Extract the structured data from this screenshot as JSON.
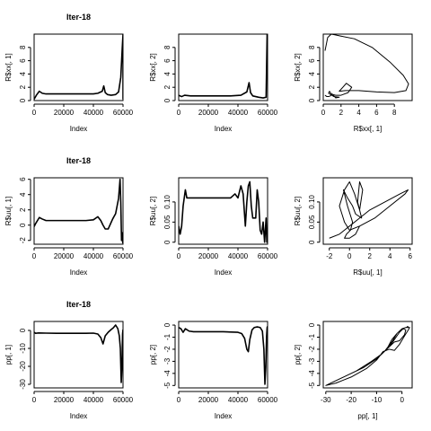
{
  "chart_data": [
    {
      "type": "line",
      "title": "Iter-18",
      "xlabel": "Index",
      "ylabel": "R$xx[, 1]",
      "xlim": [
        0,
        60000
      ],
      "ylim": [
        0,
        10
      ],
      "xticks": [
        0,
        20000,
        40000,
        60000
      ],
      "yticks": [
        0,
        2,
        4,
        6,
        8
      ],
      "series": [
        {
          "x": [
            0,
            1500,
            3500,
            5500,
            8000,
            15000,
            25000,
            35000,
            40000,
            43000,
            46000,
            47000,
            48000,
            49500,
            52000,
            55000,
            57000,
            58500,
            59500,
            60000,
            60000
          ],
          "y": [
            0.2,
            0.8,
            1.4,
            1.1,
            1.0,
            1.0,
            1.0,
            1.0,
            1.0,
            1.1,
            1.4,
            2.2,
            1.2,
            0.9,
            0.8,
            0.9,
            1.3,
            3.5,
            8.0,
            10.0,
            0.2
          ]
        }
      ]
    },
    {
      "type": "line",
      "title": "",
      "xlabel": "Index",
      "ylabel": "R$xx[, 2]",
      "xlim": [
        0,
        60000
      ],
      "ylim": [
        0,
        10
      ],
      "xticks": [
        0,
        20000,
        40000,
        60000
      ],
      "yticks": [
        0,
        2,
        4,
        6,
        8
      ],
      "series": [
        {
          "x": [
            0,
            2000,
            4000,
            8000,
            15000,
            25000,
            35000,
            42000,
            46000,
            47500,
            48500,
            50000,
            54000,
            57000,
            59000,
            59700,
            60000,
            60000
          ],
          "y": [
            0.8,
            0.6,
            0.8,
            0.7,
            0.7,
            0.7,
            0.7,
            0.8,
            1.3,
            2.7,
            1.2,
            0.7,
            0.5,
            0.4,
            0.5,
            10.0,
            9.5,
            7.5
          ]
        }
      ]
    },
    {
      "type": "line",
      "title": "",
      "xlabel": "R$xx[, 1]",
      "ylabel": "R$xx[, 2]",
      "xlim": [
        0,
        10
      ],
      "ylim": [
        0,
        10
      ],
      "xticks": [
        0,
        2,
        4,
        6,
        8
      ],
      "yticks": [
        0,
        2,
        4,
        6,
        8
      ],
      "series": [
        {
          "x": [
            0.2,
            0.5,
            0.9,
            1.3,
            2.0,
            3.5,
            5.5,
            7.5,
            9.0,
            9.6,
            9.3,
            8.0,
            6.0,
            4.0,
            2.5,
            1.8,
            2.6,
            3.2,
            2.8,
            2.0,
            1.4,
            1.1,
            0.9,
            0.7,
            0.6,
            1.2,
            1.8,
            1.4,
            1.0,
            0.8,
            0.6,
            0.4,
            0.2
          ],
          "y": [
            7.5,
            9.5,
            10.0,
            9.9,
            9.7,
            9.3,
            8.0,
            5.8,
            3.8,
            2.5,
            1.5,
            1.2,
            1.3,
            1.5,
            1.5,
            1.4,
            2.6,
            2.0,
            1.2,
            0.8,
            0.8,
            0.9,
            1.0,
            1.4,
            1.1,
            0.6,
            0.5,
            0.4,
            1.0,
            0.7,
            0.6,
            0.6,
            0.8
          ]
        }
      ]
    },
    {
      "type": "line",
      "title": "Iter-18",
      "xlabel": "Index",
      "ylabel": "R$uu[, 1]",
      "xlim": [
        0,
        60000
      ],
      "ylim": [
        -2.5,
        6.2
      ],
      "xticks": [
        0,
        20000,
        40000,
        60000
      ],
      "yticks": [
        -2,
        0,
        2,
        4,
        6
      ],
      "series": [
        {
          "x": [
            0,
            1000,
            3500,
            5500,
            8000,
            15000,
            25000,
            35000,
            40000,
            43000,
            45000,
            46500,
            48000,
            50000,
            53000,
            55000,
            57000,
            58000,
            58500,
            59000,
            59500,
            59800,
            60000
          ],
          "y": [
            -0.2,
            0.2,
            1.0,
            0.8,
            0.6,
            0.6,
            0.6,
            0.6,
            0.7,
            1.1,
            0.6,
            0.0,
            -0.5,
            -0.5,
            0.8,
            1.5,
            3.5,
            6.0,
            3.0,
            -2.0,
            -1.0,
            -2.3,
            -1.5
          ]
        }
      ]
    },
    {
      "type": "line",
      "title": "",
      "xlabel": "Index",
      "ylabel": "R$uu[, 2]",
      "xlim": [
        0,
        60000
      ],
      "ylim": [
        -0.005,
        0.16
      ],
      "xticks": [
        0,
        20000,
        40000,
        60000
      ],
      "yticks": [
        0.0,
        0.05,
        0.1
      ],
      "series": [
        {
          "x": [
            0,
            1000,
            2000,
            3000,
            4500,
            5500,
            7000,
            9000,
            12000,
            15000,
            25000,
            35000,
            38000,
            40000,
            42000,
            43500,
            45000,
            46000,
            47000,
            48000,
            49000,
            50000,
            52000,
            53000,
            54000,
            55000,
            56000,
            57000,
            58000,
            59000,
            59500,
            60000
          ],
          "y": [
            0.04,
            0.02,
            0.04,
            0.09,
            0.13,
            0.11,
            0.11,
            0.11,
            0.11,
            0.11,
            0.11,
            0.11,
            0.12,
            0.11,
            0.14,
            0.12,
            0.04,
            0.1,
            0.14,
            0.15,
            0.09,
            0.06,
            0.06,
            0.13,
            0.1,
            0.03,
            0.02,
            0.05,
            0.0,
            0.06,
            0.0,
            0.0
          ]
        }
      ]
    },
    {
      "type": "line",
      "title": "",
      "xlabel": "R$uu[, 1]",
      "ylabel": "R$uu[, 2]",
      "xlim": [
        -2.6,
        6.2
      ],
      "ylim": [
        -0.005,
        0.16
      ],
      "xticks": [
        -2,
        0,
        2,
        4,
        6
      ],
      "yticks": [
        0.0,
        0.05,
        0.1
      ],
      "series": [
        {
          "x": [
            -2.0,
            -1.0,
            0.0,
            1.0,
            2.0,
            3.5,
            5.0,
            5.8,
            5.5,
            4.0,
            2.5,
            1.0,
            0.0,
            -0.5,
            -1.0,
            -0.5,
            0.0,
            0.5,
            1.0,
            1.3,
            1.0,
            0.8,
            1.2,
            0.6,
            0.3,
            -0.2,
            -0.6,
            -0.2,
            0.3,
            0.1,
            -0.3,
            -0.5,
            0.0,
            0.6,
            1.0
          ],
          "y": [
            0.01,
            0.02,
            0.04,
            0.06,
            0.08,
            0.1,
            0.12,
            0.13,
            0.12,
            0.09,
            0.06,
            0.04,
            0.03,
            0.05,
            0.09,
            0.13,
            0.15,
            0.12,
            0.08,
            0.13,
            0.15,
            0.1,
            0.06,
            0.07,
            0.09,
            0.11,
            0.13,
            0.09,
            0.05,
            0.03,
            0.02,
            0.01,
            0.01,
            0.02,
            0.04
          ]
        }
      ]
    },
    {
      "type": "line",
      "title": "Iter-18",
      "xlabel": "Index",
      "ylabel": "pp[, 1]",
      "xlim": [
        0,
        60000
      ],
      "ylim": [
        -32,
        5
      ],
      "xticks": [
        0,
        20000,
        40000,
        60000
      ],
      "yticks": [
        -30,
        -20,
        -10,
        0
      ],
      "series": [
        {
          "x": [
            0,
            1000,
            3000,
            8000,
            15000,
            25000,
            35000,
            40000,
            43000,
            45000,
            46500,
            48000,
            50000,
            52000,
            53500,
            55000,
            56500,
            57500,
            58200,
            58800,
            59200,
            59700,
            60000
          ],
          "y": [
            -1.0,
            -1.6,
            -1.4,
            -1.5,
            -1.6,
            -1.6,
            -1.6,
            -1.5,
            -2.0,
            -4.0,
            -7.5,
            -3.0,
            -1.0,
            0.5,
            1.5,
            3.0,
            1.0,
            -3.0,
            -10.0,
            -29.0,
            -22.0,
            -2.0,
            0.5
          ]
        }
      ]
    },
    {
      "type": "line",
      "title": "",
      "xlabel": "Index",
      "ylabel": "pp[, 2]",
      "xlim": [
        0,
        60000
      ],
      "ylim": [
        -5.2,
        0.3
      ],
      "xticks": [
        0,
        20000,
        40000,
        60000
      ],
      "yticks": [
        -5,
        -4,
        -3,
        -2,
        -1,
        0
      ],
      "series": [
        {
          "x": [
            0,
            1500,
            3000,
            4500,
            7000,
            10000,
            20000,
            30000,
            40000,
            42500,
            44500,
            46000,
            47000,
            48000,
            49500,
            51000,
            53000,
            55000,
            56500,
            57500,
            58200,
            58800,
            59300,
            59700,
            60000
          ],
          "y": [
            -0.2,
            -0.3,
            -0.6,
            -0.3,
            -0.5,
            -0.55,
            -0.55,
            -0.55,
            -0.6,
            -0.7,
            -1.1,
            -2.0,
            -2.2,
            -1.2,
            -0.4,
            -0.2,
            -0.15,
            -0.2,
            -0.5,
            -2.0,
            -4.9,
            -3.5,
            -1.0,
            -0.2,
            -0.1
          ]
        }
      ]
    },
    {
      "type": "line",
      "title": "",
      "xlabel": "pp[, 1]",
      "ylabel": "pp[, 2]",
      "xlim": [
        -31,
        4
      ],
      "ylim": [
        -5.2,
        0.3
      ],
      "xticks": [
        -30,
        -20,
        -10,
        0
      ],
      "yticks": [
        -5,
        -4,
        -3,
        -2,
        -1,
        0
      ],
      "series": [
        {
          "x": [
            -29.0,
            -22.0,
            -15.0,
            -10.0,
            -7.0,
            -4.0,
            -2.0,
            0.0,
            1.5,
            3.0,
            2.5,
            1.0,
            -1.0,
            -3.0,
            -5.0,
            -7.5,
            -10.0,
            -14.0,
            -20.0,
            -26.0,
            -30.0,
            -26.0,
            -18.0,
            -12.0,
            -8.0,
            -5.0,
            -3.0,
            -1.0,
            0.5,
            1.5,
            1.0,
            -1.0,
            -3.0,
            -6.0,
            -4.0,
            -2.0,
            0.0,
            1.5,
            2.5,
            2.0
          ],
          "y": [
            -4.9,
            -4.2,
            -3.5,
            -2.8,
            -2.2,
            -1.4,
            -0.7,
            -0.3,
            -0.2,
            -0.2,
            -0.4,
            -0.9,
            -1.6,
            -2.1,
            -2.0,
            -2.2,
            -2.9,
            -3.6,
            -4.3,
            -4.8,
            -5.0,
            -4.6,
            -3.8,
            -3.0,
            -2.4,
            -1.8,
            -1.2,
            -0.6,
            -0.3,
            -0.4,
            -0.8,
            -1.3,
            -1.4,
            -2.0,
            -1.2,
            -0.7,
            -0.3,
            -0.2,
            -0.15,
            -0.1
          ]
        }
      ]
    }
  ]
}
